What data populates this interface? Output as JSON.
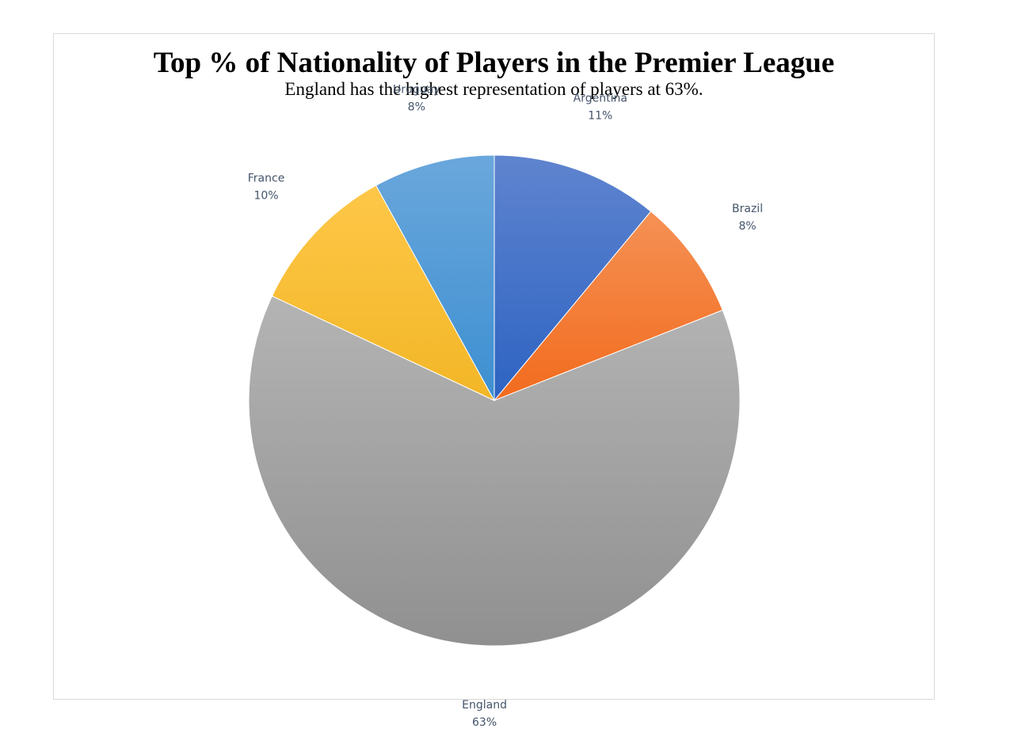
{
  "chart_data": {
    "type": "pie",
    "title": "Top % of Nationality of Players in the Premier League",
    "subtitle": "England has the highest representation of players at 63%.",
    "slices": [
      {
        "name": "Argentina",
        "value": 11,
        "label": "11%",
        "color_top": "#5f84cf",
        "color_bottom": "#2d63c2"
      },
      {
        "name": "Brazil",
        "value": 8,
        "label": "8%",
        "color_top": "#f59155",
        "color_bottom": "#f26b1d"
      },
      {
        "name": "England",
        "value": 63,
        "label": "63%",
        "color_top": "#b4b4b4",
        "color_bottom": "#909090"
      },
      {
        "name": "France",
        "value": 10,
        "label": "10%",
        "color_top": "#fec748",
        "color_bottom": "#f2b626"
      },
      {
        "name": "Uruguay",
        "value": 8,
        "label": "8%",
        "color_top": "#6aa7dc",
        "color_bottom": "#3d8fd1"
      }
    ],
    "start_angle_deg": 0,
    "direction": "clockwise",
    "legend": "none",
    "label_color": "#44546a"
  }
}
